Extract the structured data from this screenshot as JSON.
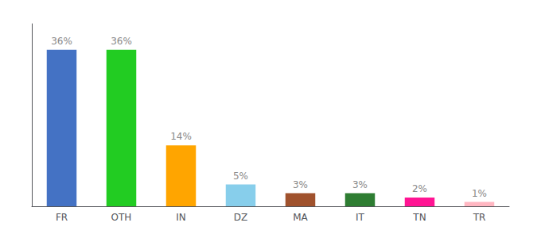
{
  "chart_data": {
    "type": "bar",
    "categories": [
      "FR",
      "OTH",
      "IN",
      "DZ",
      "MA",
      "IT",
      "TN",
      "TR"
    ],
    "values": [
      36,
      36,
      14,
      5,
      3,
      3,
      2,
      1
    ],
    "value_labels": [
      "36%",
      "36%",
      "14%",
      "5%",
      "3%",
      "3%",
      "2%",
      "1%"
    ],
    "colors": [
      "#4472c4",
      "#22cc22",
      "#ffa500",
      "#87ceeb",
      "#a0522d",
      "#2e7d32",
      "#ff1493",
      "#ffb6c1"
    ],
    "ylim": [
      0,
      42
    ],
    "data_labels": true,
    "tick_labels": "x",
    "grid": false
  }
}
